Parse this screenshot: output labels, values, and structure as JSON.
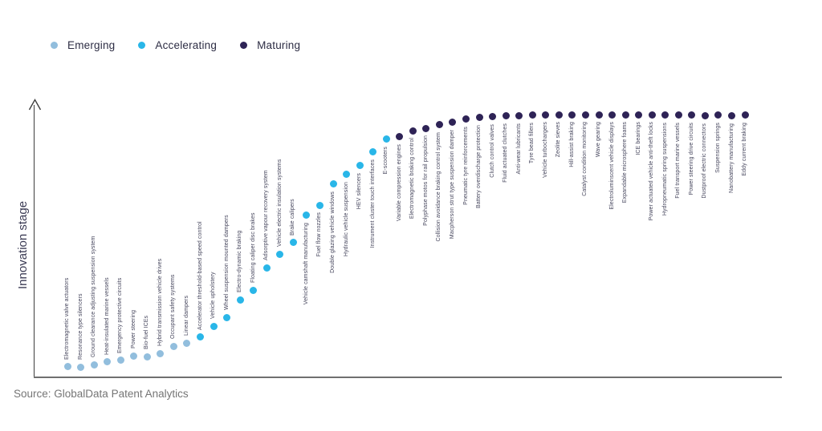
{
  "legend": [
    {
      "label": "Emerging",
      "color": "#92bedd"
    },
    {
      "label": "Accelerating",
      "color": "#29b6e8"
    },
    {
      "label": "Maturing",
      "color": "#2e2356"
    }
  ],
  "y_axis_label": "Innovation stage",
  "source_text": "Source: GlobalData Patent Analytics",
  "chart_data": {
    "type": "scatter",
    "title": "",
    "xlabel": "",
    "ylabel": "Innovation stage",
    "grid": false,
    "legend_position": "top-left",
    "y_axis": {
      "kind": "qualitative",
      "range": [
        0,
        1
      ],
      "ticks": []
    },
    "stages": [
      "Emerging",
      "Accelerating",
      "Maturing"
    ],
    "points": [
      {
        "label": "Electromagnetic valve actuators",
        "stage": "Emerging",
        "score": 0.04
      },
      {
        "label": "Resonance type silencers",
        "stage": "Emerging",
        "score": 0.038
      },
      {
        "label": "Ground clearance adjusting suspension system",
        "stage": "Emerging",
        "score": 0.048
      },
      {
        "label": "Heat-insulated marine vessels",
        "stage": "Emerging",
        "score": 0.058
      },
      {
        "label": "Emergency protective circuits",
        "stage": "Emerging",
        "score": 0.064
      },
      {
        "label": "Power steering",
        "stage": "Emerging",
        "score": 0.082
      },
      {
        "label": "Bio-fuel ICEs",
        "stage": "Emerging",
        "score": 0.079
      },
      {
        "label": "Hybrid transmission vehicle drives",
        "stage": "Emerging",
        "score": 0.091
      },
      {
        "label": "Occupant safety systems",
        "stage": "Emerging",
        "score": 0.118
      },
      {
        "label": "Linear dampers",
        "stage": "Emerging",
        "score": 0.13
      },
      {
        "label": "Accelerator threshold-based speed control",
        "stage": "Accelerating",
        "score": 0.152
      },
      {
        "label": "Vehicle upholstery",
        "stage": "Accelerating",
        "score": 0.194
      },
      {
        "label": "Wheel suspension mounted dampers",
        "stage": "Accelerating",
        "score": 0.227
      },
      {
        "label": "Electro-dynamic braking",
        "stage": "Accelerating",
        "score": 0.294
      },
      {
        "label": "Floating caliper disc brakes",
        "stage": "Accelerating",
        "score": 0.33
      },
      {
        "label": "Adsorptive vapour recovery system",
        "stage": "Accelerating",
        "score": 0.415
      },
      {
        "label": "Vehicle electric insulation systems",
        "stage": "Accelerating",
        "score": 0.467
      },
      {
        "label": "Brake calipers",
        "stage": "Accelerating",
        "score": 0.512
      },
      {
        "label": "Vehicle camshaft manufacturing",
        "stage": "Accelerating",
        "score": 0.615
      },
      {
        "label": "Fuel flow nozzles",
        "stage": "Accelerating",
        "score": 0.652
      },
      {
        "label": "Double glazing vehicle windows",
        "stage": "Accelerating",
        "score": 0.733
      },
      {
        "label": "Hydraulic vehicle suspension",
        "stage": "Accelerating",
        "score": 0.77
      },
      {
        "label": "HEV silencers",
        "stage": "Accelerating",
        "score": 0.803
      },
      {
        "label": "Instrument cluster touch interfaces",
        "stage": "Accelerating",
        "score": 0.855
      },
      {
        "label": "E-scooters",
        "stage": "Accelerating",
        "score": 0.903
      },
      {
        "label": "Variable compression engines",
        "stage": "Maturing",
        "score": 0.912
      },
      {
        "label": "Electromagnetic braking control",
        "stage": "Maturing",
        "score": 0.936
      },
      {
        "label": "Polyphase motos for rail propulsion",
        "stage": "Maturing",
        "score": 0.945
      },
      {
        "label": "Collision avoidance braking control system",
        "stage": "Maturing",
        "score": 0.958
      },
      {
        "label": "Macpherson strut type suspension damper",
        "stage": "Maturing",
        "score": 0.967
      },
      {
        "label": "Pneumatic tyre reinforcements",
        "stage": "Maturing",
        "score": 0.979
      },
      {
        "label": "Battery overdischarge protection",
        "stage": "Maturing",
        "score": 0.985
      },
      {
        "label": "Clutch control valves",
        "stage": "Maturing",
        "score": 0.988
      },
      {
        "label": "Fluid actuated clutches",
        "stage": "Maturing",
        "score": 0.991
      },
      {
        "label": "Anti-wear lubricants",
        "stage": "Maturing",
        "score": 0.991
      },
      {
        "label": "Tyre bead fillers",
        "stage": "Maturing",
        "score": 0.994
      },
      {
        "label": "Vehicle turbochargers",
        "stage": "Maturing",
        "score": 0.996
      },
      {
        "label": "Zeolite sieves",
        "stage": "Maturing",
        "score": 0.996
      },
      {
        "label": "Hill-assist braking",
        "stage": "Maturing",
        "score": 0.996
      },
      {
        "label": "Catalyst condition monitoring",
        "stage": "Maturing",
        "score": 0.996
      },
      {
        "label": "Wave gearing",
        "stage": "Maturing",
        "score": 0.996
      },
      {
        "label": "Electroluminscent vehicle displays",
        "stage": "Maturing",
        "score": 0.996
      },
      {
        "label": "Expandable microsphere foams",
        "stage": "Maturing",
        "score": 0.996
      },
      {
        "label": "ICE bearings",
        "stage": "Maturing",
        "score": 0.996
      },
      {
        "label": "Power actuated vehicle anti-theft locks",
        "stage": "Maturing",
        "score": 0.996
      },
      {
        "label": "Hydropneumatic spring suspensions",
        "stage": "Maturing",
        "score": 0.994
      },
      {
        "label": "Fuel transport marine vessels",
        "stage": "Maturing",
        "score": 0.994
      },
      {
        "label": "Power steering drive circuits",
        "stage": "Maturing",
        "score": 0.994
      },
      {
        "label": "Dustproof electric connectors",
        "stage": "Maturing",
        "score": 0.991
      },
      {
        "label": "Suspension springs",
        "stage": "Maturing",
        "score": 0.994
      },
      {
        "label": "Nanobattery manufacturing",
        "stage": "Maturing",
        "score": 0.991
      },
      {
        "label": "Eddy current braking",
        "stage": "Maturing",
        "score": 0.994
      }
    ]
  }
}
